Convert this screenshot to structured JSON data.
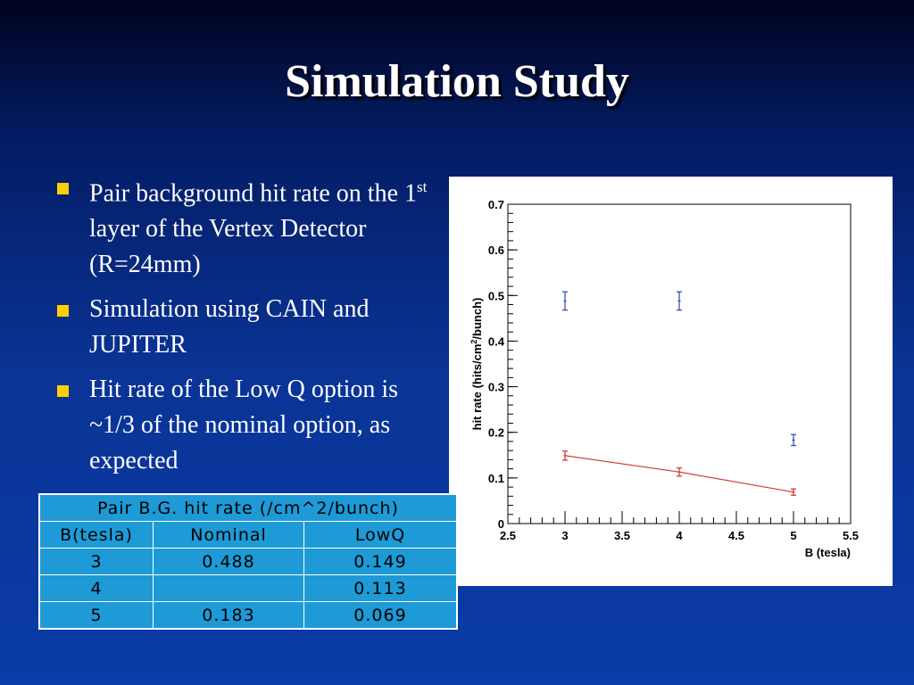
{
  "slide": {
    "title": "Simulation Study",
    "bullets": [
      {
        "pre": "Pair background hit rate on the 1",
        "sup": "st",
        "post": " layer of the Vertex Detector (R=24mm)"
      },
      {
        "pre": "Simulation using CAIN and JUPITER",
        "sup": "",
        "post": ""
      },
      {
        "pre": "Hit rate of the Low Q option is ~1/3 of the nominal option, as expected",
        "sup": "",
        "post": ""
      }
    ]
  },
  "table": {
    "caption": "Pair B.G. hit rate (/cm^2/bunch)",
    "headers": [
      "B(tesla)",
      "Nominal",
      "LowQ"
    ],
    "rows": [
      [
        "3",
        "0.488",
        "0.149"
      ],
      [
        "4",
        "",
        "0.113"
      ],
      [
        "5",
        "0.183",
        "0.069"
      ]
    ]
  },
  "chart_data": {
    "type": "scatter",
    "xlabel": "B (tesla)",
    "ylabel": "hit rate (hits/cm²/bunch)",
    "ylabel_parts": {
      "pre": "hit rate (hits/cm",
      "sup": "2",
      "post": "/bunch)"
    },
    "xlim": [
      2.5,
      5.5
    ],
    "ylim": [
      0,
      0.7
    ],
    "x_ticks": [
      "2.5",
      "3",
      "3.5",
      "4",
      "4.5",
      "5",
      "5.5"
    ],
    "y_ticks": [
      "0",
      "0.1",
      "0.2",
      "0.3",
      "0.4",
      "0.5",
      "0.6",
      "0.7"
    ],
    "grid": false,
    "series": [
      {
        "color": "#3a50b4",
        "fit_line": false,
        "points": [
          {
            "x": 3,
            "y": 0.488,
            "err": 0.02
          },
          {
            "x": 4,
            "y": 0.488,
            "err": 0.02
          },
          {
            "x": 5,
            "y": 0.183,
            "err": 0.012
          }
        ]
      },
      {
        "color": "#d23c3c",
        "fit_line": true,
        "points": [
          {
            "x": 3,
            "y": 0.149,
            "err": 0.01
          },
          {
            "x": 4,
            "y": 0.113,
            "err": 0.009
          },
          {
            "x": 5,
            "y": 0.069,
            "err": 0.007
          }
        ]
      }
    ]
  }
}
